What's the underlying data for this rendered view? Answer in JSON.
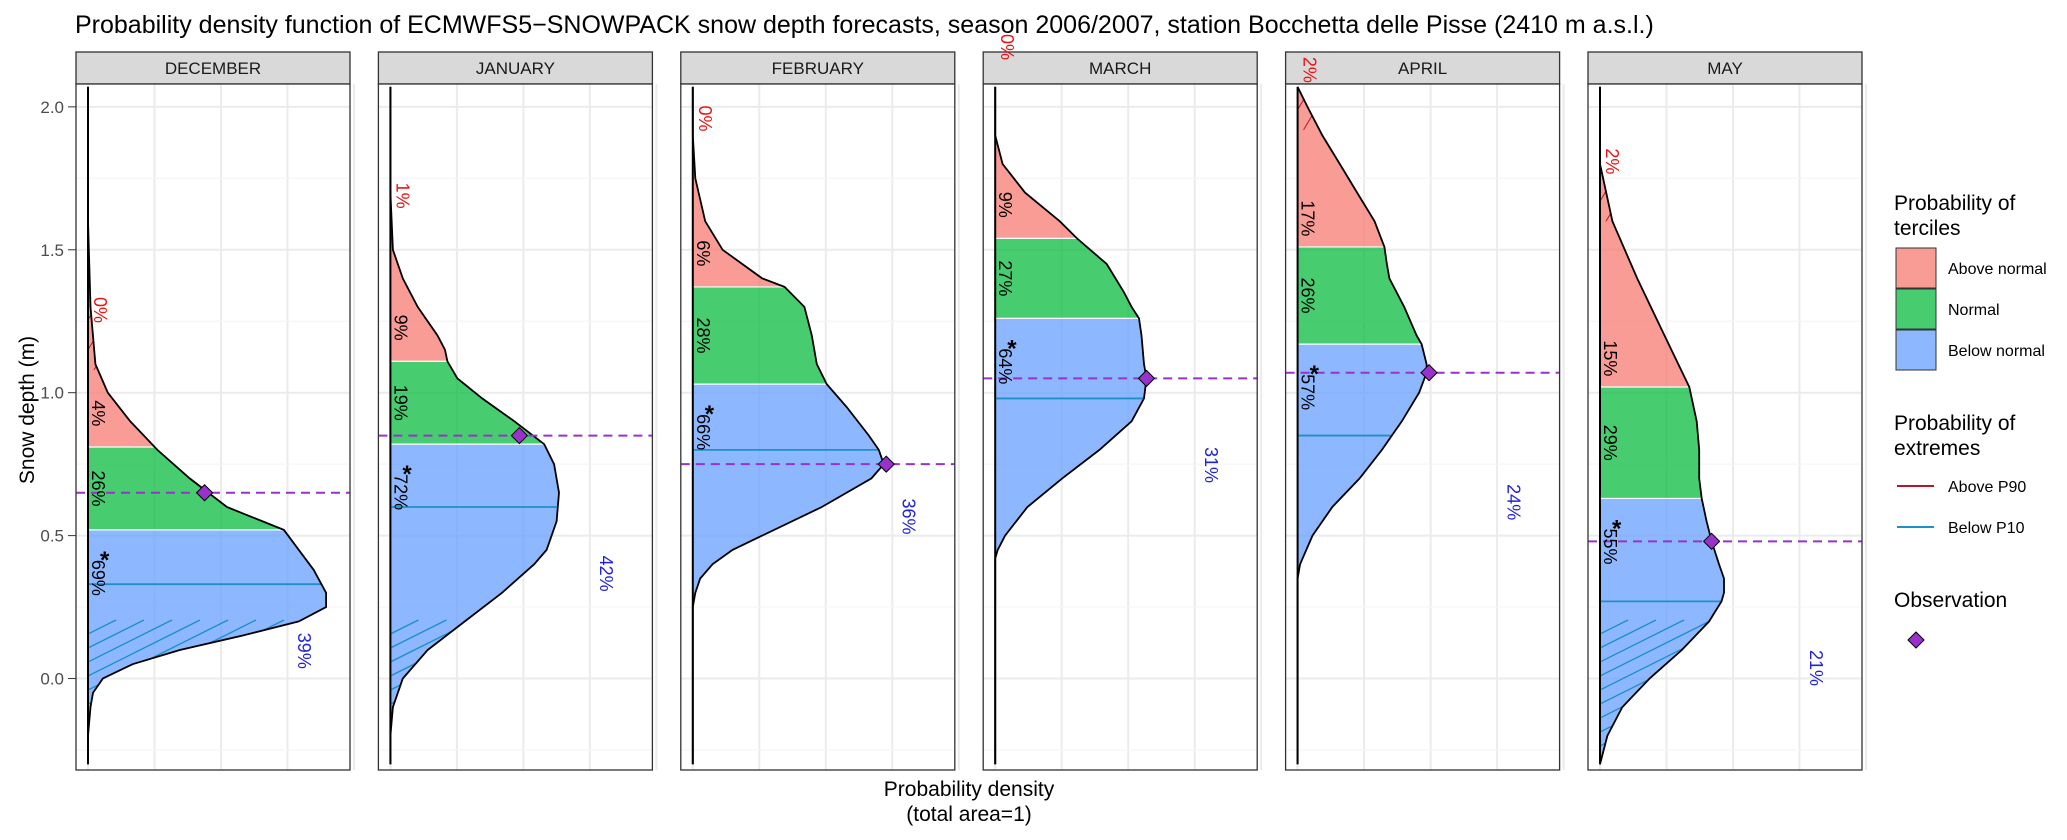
{
  "title": "Probability density function of ECMWFS5−SNOWPACK snow depth forecasts, season 2006/2007, station Bocchetta delle Pisse (2410 m a.s.l.)",
  "colors": {
    "above": "#F8766D",
    "normal": "#00BA38",
    "below": "#619CFF",
    "above_p90": "#B2182B",
    "below_p10": "#1F8FC8",
    "observation": "#9932CC",
    "below_label": "#2222DD",
    "above_label": "#EE1111"
  },
  "chart_data": {
    "type": "area",
    "orientation": "horizontal-density",
    "ylabel": "Snow depth (m)",
    "xlabel_line1": "Probability density",
    "xlabel_line2": "(total area=1)",
    "ylim": [
      -0.32,
      2.08
    ],
    "y_ticks": [
      "0.0",
      "0.5",
      "1.0",
      "1.5",
      "2.0"
    ],
    "y_tick_values": [
      0.0,
      0.5,
      1.0,
      1.5,
      2.0
    ],
    "grid": true,
    "legend_position": "right",
    "panels": [
      {
        "month": "DECEMBER",
        "tercile_low": 0.52,
        "tercile_high": 0.81,
        "p10": 0.33,
        "p90": 1.08,
        "observation": 0.65,
        "obs_density_frac": 0.47,
        "density_y": [
          2.07,
          1.6,
          1.3,
          1.1,
          1.0,
          0.9,
          0.8,
          0.7,
          0.6,
          0.52,
          0.45,
          0.38,
          0.3,
          0.25,
          0.2,
          0.15,
          0.1,
          0.05,
          0.0,
          -0.05,
          -0.1,
          -0.2,
          -0.3
        ],
        "density_frac": [
          0.0,
          0.0,
          0.01,
          0.03,
          0.08,
          0.17,
          0.28,
          0.41,
          0.56,
          0.79,
          0.85,
          0.91,
          0.96,
          0.96,
          0.85,
          0.62,
          0.37,
          0.18,
          0.06,
          0.02,
          0.01,
          0.0,
          0.0
        ],
        "prob_above": "4%",
        "prob_normal": "26%",
        "prob_below": "69%",
        "prob_p90": "0%",
        "prob_p10": "39%",
        "star": true
      },
      {
        "month": "JANUARY",
        "tercile_low": 0.82,
        "tercile_high": 1.11,
        "p10": 0.6,
        "p90": 1.48,
        "observation": 0.85,
        "obs_density_frac": 0.52,
        "density_y": [
          2.07,
          1.7,
          1.5,
          1.4,
          1.3,
          1.2,
          1.15,
          1.11,
          1.05,
          0.98,
          0.9,
          0.82,
          0.75,
          0.65,
          0.55,
          0.45,
          0.4,
          0.3,
          0.2,
          0.1,
          0.0,
          -0.1,
          -0.2,
          -0.3
        ],
        "density_frac": [
          0.0,
          0.0,
          0.01,
          0.05,
          0.11,
          0.19,
          0.22,
          0.23,
          0.27,
          0.37,
          0.5,
          0.62,
          0.66,
          0.68,
          0.67,
          0.63,
          0.58,
          0.45,
          0.3,
          0.15,
          0.05,
          0.01,
          0.0,
          0.0
        ],
        "prob_above": "9%",
        "prob_normal": "19%",
        "prob_below": "72%",
        "prob_p90": "1%",
        "prob_p10": "42%",
        "star": true
      },
      {
        "month": "FEBRUARY",
        "tercile_low": 1.03,
        "tercile_high": 1.37,
        "p10": 0.8,
        "p90": 1.75,
        "observation": 0.75,
        "obs_density_frac": 0.78,
        "density_y": [
          2.07,
          1.9,
          1.75,
          1.6,
          1.5,
          1.4,
          1.37,
          1.3,
          1.2,
          1.1,
          1.03,
          0.95,
          0.85,
          0.8,
          0.75,
          0.7,
          0.6,
          0.5,
          0.45,
          0.4,
          0.35,
          0.3,
          0.25,
          -0.3
        ],
        "density_frac": [
          0.0,
          0.0,
          0.01,
          0.05,
          0.12,
          0.28,
          0.37,
          0.45,
          0.48,
          0.5,
          0.54,
          0.62,
          0.71,
          0.75,
          0.77,
          0.72,
          0.52,
          0.28,
          0.16,
          0.08,
          0.03,
          0.01,
          0.0,
          0.0
        ],
        "prob_above": "6%",
        "prob_normal": "28%",
        "prob_below": "66%",
        "prob_p90": "0%",
        "prob_p10": "36%",
        "star": true
      },
      {
        "month": "MARCH",
        "tercile_low": 1.26,
        "tercile_high": 1.54,
        "p10": 0.98,
        "p90": 2.0,
        "observation": 1.05,
        "obs_density_frac": 0.61,
        "density_y": [
          2.07,
          1.9,
          1.8,
          1.7,
          1.6,
          1.54,
          1.45,
          1.35,
          1.3,
          1.26,
          1.2,
          1.1,
          1.05,
          0.98,
          0.9,
          0.8,
          0.7,
          0.6,
          0.5,
          0.45,
          0.42,
          -0.3
        ],
        "density_frac": [
          0.0,
          0.0,
          0.03,
          0.12,
          0.26,
          0.33,
          0.45,
          0.52,
          0.55,
          0.58,
          0.59,
          0.6,
          0.61,
          0.6,
          0.55,
          0.42,
          0.27,
          0.13,
          0.04,
          0.01,
          0.0,
          0.0
        ],
        "prob_above": "9%",
        "prob_normal": "27%",
        "prob_below": "64%",
        "prob_p90": "0%",
        "prob_p10": "31%",
        "star": true
      },
      {
        "month": "APRIL",
        "tercile_low": 1.17,
        "tercile_high": 1.51,
        "p10": 0.85,
        "p90": 1.92,
        "observation": 1.07,
        "obs_density_frac": 0.53,
        "density_y": [
          2.07,
          2.0,
          1.9,
          1.8,
          1.7,
          1.6,
          1.51,
          1.45,
          1.4,
          1.3,
          1.2,
          1.17,
          1.1,
          1.07,
          1.0,
          0.9,
          0.85,
          0.8,
          0.7,
          0.6,
          0.5,
          0.4,
          0.35,
          -0.3
        ],
        "density_frac": [
          0.0,
          0.04,
          0.1,
          0.17,
          0.24,
          0.31,
          0.35,
          0.36,
          0.37,
          0.43,
          0.48,
          0.5,
          0.52,
          0.52,
          0.49,
          0.42,
          0.38,
          0.34,
          0.25,
          0.14,
          0.06,
          0.01,
          0.0,
          0.0
        ],
        "prob_above": "17%",
        "prob_normal": "26%",
        "prob_below": "57%",
        "prob_p90": "2%",
        "prob_p10": "24%",
        "star": true
      },
      {
        "month": "MAY",
        "tercile_low": 0.63,
        "tercile_high": 1.02,
        "p10": 0.27,
        "p90": 1.6,
        "observation": 0.48,
        "obs_density_frac": 0.45,
        "density_y": [
          2.07,
          1.8,
          1.6,
          1.4,
          1.2,
          1.02,
          0.9,
          0.8,
          0.7,
          0.63,
          0.55,
          0.48,
          0.4,
          0.35,
          0.3,
          0.27,
          0.2,
          0.1,
          0.0,
          -0.1,
          -0.2,
          -0.3
        ],
        "density_frac": [
          0.0,
          0.0,
          0.05,
          0.15,
          0.26,
          0.36,
          0.39,
          0.4,
          0.4,
          0.41,
          0.43,
          0.45,
          0.48,
          0.5,
          0.5,
          0.49,
          0.44,
          0.33,
          0.2,
          0.09,
          0.03,
          0.0
        ],
        "prob_above": "15%",
        "prob_normal": "29%",
        "prob_below": "55%",
        "prob_p90": "2%",
        "prob_p10": "21%",
        "star": true
      }
    ]
  },
  "legend": {
    "terciles_title_line1": "Probability of",
    "terciles_title_line2": "terciles",
    "terciles": [
      {
        "label": "Above normal",
        "color": "#F8766D"
      },
      {
        "label": "Normal",
        "color": "#00BA38"
      },
      {
        "label": "Below normal",
        "color": "#619CFF"
      }
    ],
    "extremes_title_line1": "Probability of",
    "extremes_title_line2": "extremes",
    "extremes": [
      {
        "label": "Above P90",
        "color": "#B2182B"
      },
      {
        "label": "Below P10",
        "color": "#1F8FC8"
      }
    ],
    "observation_title": "Observation"
  }
}
